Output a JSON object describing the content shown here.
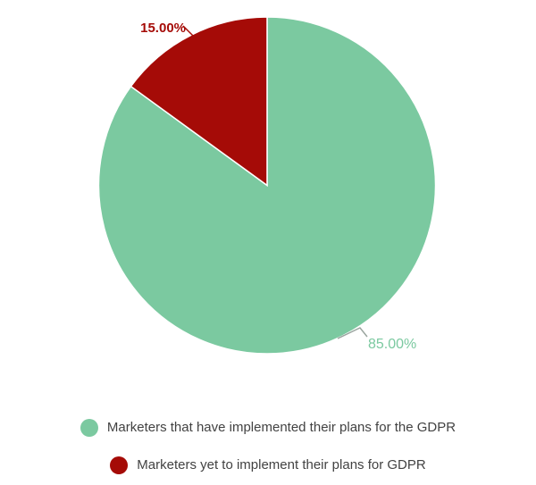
{
  "chart_data": {
    "type": "pie",
    "title": "",
    "start_angle_deg": 0,
    "direction": "clockwise",
    "legend_position": "bottom",
    "background_color": "#ffffff",
    "slices": [
      {
        "id": "implemented",
        "label": "Marketers that have implemented their plans for the GDPR",
        "value": 85,
        "percent_label": "85.00%",
        "color": "#7bc9a0"
      },
      {
        "id": "not-implemented",
        "label": "Marketers yet to implement their plans for GDPR",
        "value": 15,
        "percent_label": "15.00%",
        "color": "#a50b07"
      }
    ],
    "label_colors": {
      "percent_85": "#7bc9a0",
      "percent_15": "#a50b07",
      "leader_line_85": "#9aa59f",
      "leader_line_15": "#a50b07",
      "legend_text": "#424242"
    }
  }
}
